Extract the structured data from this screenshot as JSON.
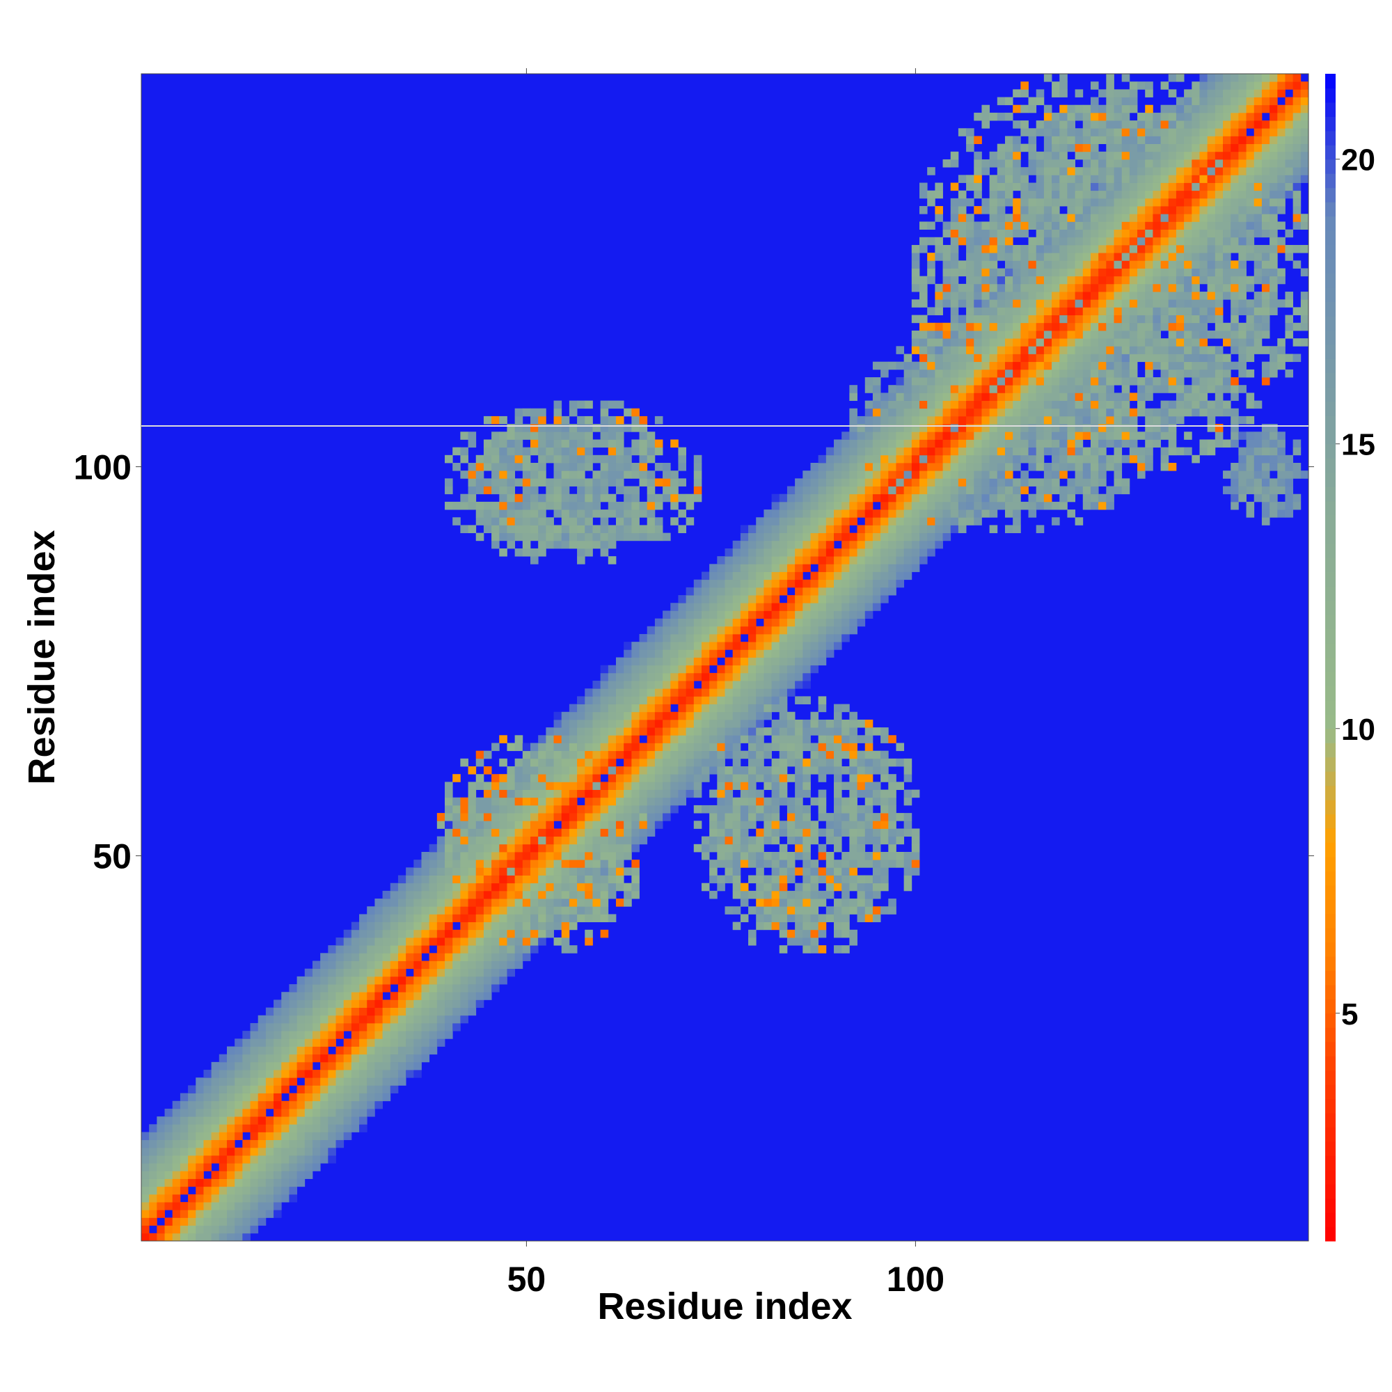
{
  "chart_data": {
    "type": "heatmap",
    "title": "",
    "xlabel": "Residue index",
    "ylabel": "Residue index",
    "n_residues": 150,
    "xlim": [
      0.5,
      150.5
    ],
    "ylim": [
      0.5,
      150.5
    ],
    "x_ticks": [
      50,
      100
    ],
    "y_ticks": [
      50,
      100
    ],
    "colorbar": {
      "range": [
        1,
        21.5
      ],
      "ticks": [
        5,
        10,
        15,
        20
      ],
      "colors": [
        "#ff0000",
        "#ff4000",
        "#ff8000",
        "#ffa000",
        "#99bb88",
        "#88aa99",
        "#6688bb",
        "#0000ff"
      ],
      "stops": [
        1,
        4,
        6,
        8,
        10,
        14,
        19,
        21.5
      ]
    },
    "cap_value": 21,
    "band_profile": [
      [
        0,
        2.5
      ],
      [
        2,
        5.5
      ],
      [
        4,
        9
      ],
      [
        6,
        12
      ],
      [
        9,
        15
      ],
      [
        12,
        18
      ],
      [
        14,
        21
      ]
    ],
    "contact_regions": [
      {
        "x": [
          40,
          72
        ],
        "y": [
          88,
          108
        ],
        "value": 15,
        "orange": 0.08
      },
      {
        "x": [
          72,
          100
        ],
        "y": [
          38,
          70
        ],
        "value": 15,
        "orange": 0.08
      },
      {
        "x": [
          38,
          65
        ],
        "y": [
          38,
          65
        ],
        "value": 14,
        "orange": 0.18
      },
      {
        "x": [
          100,
          150
        ],
        "y": [
          100,
          150
        ],
        "value": 15,
        "orange": 0.06
      },
      {
        "x": [
          92,
          130
        ],
        "y": [
          92,
          118
        ],
        "value": 16,
        "orange": 0.04
      },
      {
        "x": [
          140,
          150
        ],
        "y": [
          93,
          105
        ],
        "value": 17,
        "orange": 0.0
      }
    ]
  }
}
